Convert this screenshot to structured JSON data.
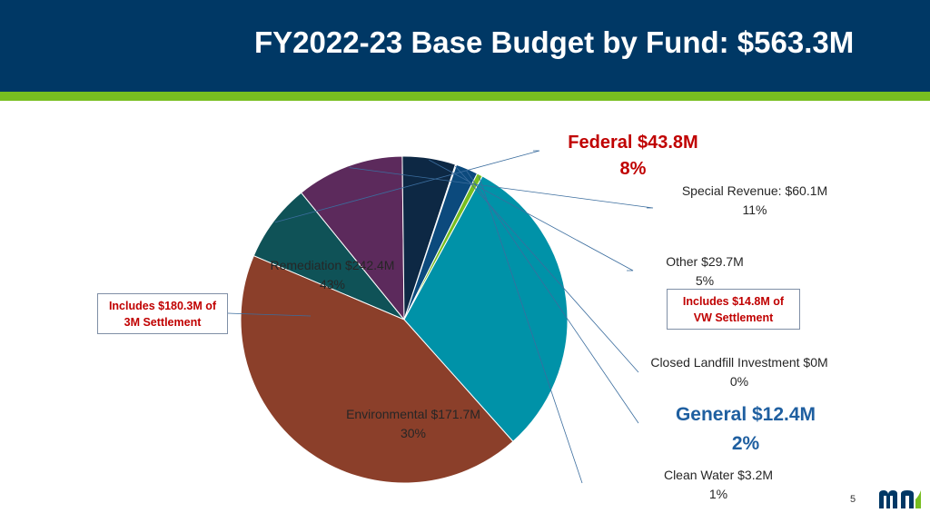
{
  "slide": {
    "title": "FY2022-23 Base Budget by Fund: $563.3M",
    "page_number": "5",
    "logo": "mn-logo"
  },
  "callouts": {
    "remediation_note": "Includes $180.3M of 3M Settlement",
    "other_note": "Includes $14.8M of VW Settlement"
  },
  "colors": {
    "header": "#003865",
    "stripe": "#78be20",
    "highlight_red": "#c00000",
    "highlight_blue": "#1f5fa0"
  },
  "chart_data": {
    "type": "pie",
    "title": "FY2022-23 Base Budget by Fund: $563.3M",
    "total": 563.3,
    "unit": "$M",
    "slices": [
      {
        "name": "Federal",
        "value": 43.8,
        "percent": 8,
        "label_line1": "Federal $43.8M",
        "label_line2": "8%",
        "color": "#0f5257"
      },
      {
        "name": "Special Revenue",
        "value": 60.1,
        "percent": 11,
        "label_line1": "Special Revenue: $60.1M",
        "label_line2": "11%",
        "color": "#5c2a5c"
      },
      {
        "name": "Other",
        "value": 29.7,
        "percent": 5,
        "label_line1": "Other $29.7M",
        "label_line2": "5%",
        "color": "#0d2844"
      },
      {
        "name": "Closed Landfill Investment",
        "value": 0,
        "percent": 0,
        "label_line1": "Closed Landfill Investment $0M",
        "label_line2": "0%",
        "color": "#3a6ea5"
      },
      {
        "name": "General",
        "value": 12.4,
        "percent": 2,
        "label_line1": "General $12.4M",
        "label_line2": "2%",
        "color": "#0c4a7d"
      },
      {
        "name": "Clean Water",
        "value": 3.2,
        "percent": 1,
        "label_line1": "Clean Water $3.2M",
        "label_line2": "1%",
        "color": "#78be20"
      },
      {
        "name": "Environmental",
        "value": 171.7,
        "percent": 30,
        "label_line1": "Environmental $171.7M",
        "label_line2": "30%",
        "color": "#0092a8"
      },
      {
        "name": "Remediation",
        "value": 242.4,
        "percent": 43,
        "label_line1": "Remediation $242.4M",
        "label_line2": "43%",
        "color": "#8b3f2a"
      }
    ]
  }
}
